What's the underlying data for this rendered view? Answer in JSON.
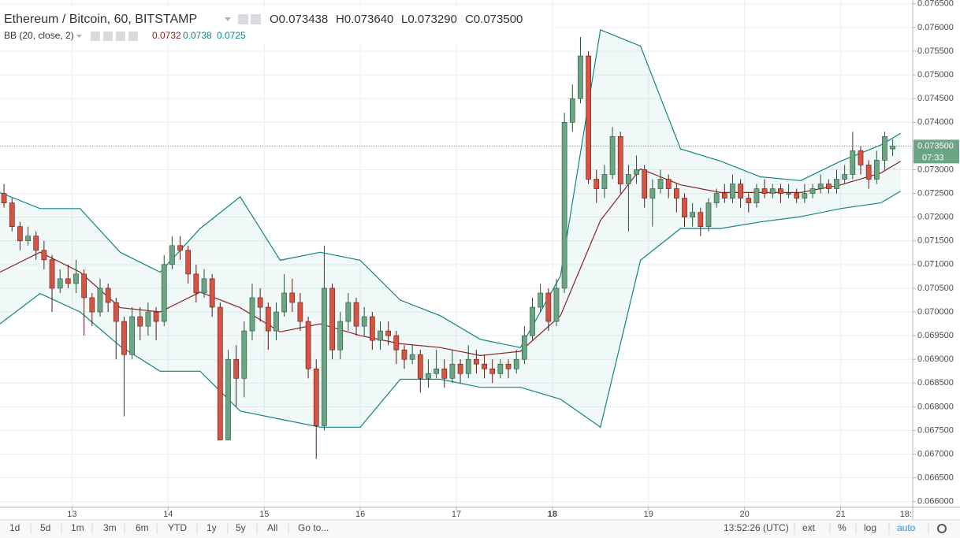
{
  "chart_data": {
    "type": "candlestick",
    "title": "Ethereum / Bitcoin, 60, BITSTAMP",
    "ohlc": [
      "O0.073438",
      "H0.073640",
      "L0.073290",
      "C0.073500"
    ],
    "indicator": {
      "name": "BB (20, close, 2)",
      "values": [
        "0.0732",
        "0.0738",
        "0.0725"
      ]
    },
    "up_color": "#6ba583",
    "down_color": "#d75442",
    "band_color": "#138484",
    "basis_color": "#872323",
    "grid": true,
    "xlim": [
      0,
      228
    ],
    "xticks": [
      {
        "value": 18,
        "label": "13"
      },
      {
        "value": 42,
        "label": "14"
      },
      {
        "value": 66,
        "label": "15"
      },
      {
        "value": 90,
        "label": "16"
      },
      {
        "value": 114,
        "label": "17"
      },
      {
        "value": 138,
        "label": "18"
      },
      {
        "value": 162,
        "label": "19"
      },
      {
        "value": 186,
        "label": "20"
      },
      {
        "value": 210,
        "label": "21"
      },
      {
        "value": 228,
        "label": "18:"
      }
    ],
    "ylim": [
      0.06588,
      0.07658
    ],
    "yticks": [
      {
        "value": 0.066,
        "label": "0.066000"
      },
      {
        "value": 0.0665,
        "label": "0.066500"
      },
      {
        "value": 0.067,
        "label": "0.067000"
      },
      {
        "value": 0.0675,
        "label": "0.067500"
      },
      {
        "value": 0.068,
        "label": "0.068000"
      },
      {
        "value": 0.0685,
        "label": "0.068500"
      },
      {
        "value": 0.069,
        "label": "0.069000"
      },
      {
        "value": 0.0695,
        "label": "0.069500"
      },
      {
        "value": 0.07,
        "label": "0.070000"
      },
      {
        "value": 0.0705,
        "label": "0.070500"
      },
      {
        "value": 0.071,
        "label": "0.071000"
      },
      {
        "value": 0.0715,
        "label": "0.071500"
      },
      {
        "value": 0.072,
        "label": "0.072000"
      },
      {
        "value": 0.0725,
        "label": "0.072500"
      },
      {
        "value": 0.073,
        "label": "0.073000"
      },
      {
        "value": 0.0735,
        "label": "0.073500"
      },
      {
        "value": 0.074,
        "label": "0.074000"
      },
      {
        "value": 0.0745,
        "label": "0.074500"
      },
      {
        "value": 0.075,
        "label": "0.075000"
      },
      {
        "value": 0.0755,
        "label": "0.075500"
      },
      {
        "value": 0.076,
        "label": "0.076000"
      },
      {
        "value": 0.0765,
        "label": "0.076500"
      }
    ],
    "last_price": {
      "value": 0.0735,
      "label": "0.073500"
    },
    "countdown": "07:33",
    "x": [
      1,
      3,
      5,
      7,
      9,
      11,
      13,
      15,
      17,
      19,
      21,
      23,
      25,
      27,
      29,
      31,
      33,
      35,
      37,
      39,
      41,
      43,
      45,
      47,
      49,
      51,
      53,
      55,
      57,
      59,
      61,
      63,
      65,
      67,
      69,
      71,
      73,
      75,
      77,
      79,
      81,
      83,
      85,
      87,
      89,
      91,
      93,
      95,
      97,
      99,
      101,
      103,
      105,
      107,
      109,
      111,
      113,
      115,
      117,
      119,
      121,
      123,
      125,
      127,
      129,
      131,
      133,
      135,
      137,
      139,
      141,
      143,
      145,
      147,
      149,
      151,
      153,
      155,
      157,
      159,
      161,
      163,
      165,
      167,
      169,
      171,
      173,
      175,
      177,
      179,
      181,
      183,
      185,
      187,
      189,
      191,
      193,
      195,
      197,
      199,
      201,
      203,
      205,
      207,
      209,
      211,
      213,
      215,
      217,
      219,
      221,
      223
    ],
    "candles": [
      [
        0.0725,
        0.0727,
        0.0722,
        0.0723
      ],
      [
        0.0723,
        0.0724,
        0.0717,
        0.0718
      ],
      [
        0.0718,
        0.0719,
        0.0713,
        0.0715
      ],
      [
        0.0715,
        0.0718,
        0.0714,
        0.0716
      ],
      [
        0.0716,
        0.0717,
        0.0711,
        0.0713
      ],
      [
        0.0713,
        0.0715,
        0.0709,
        0.0711
      ],
      [
        0.0711,
        0.0712,
        0.07,
        0.0705
      ],
      [
        0.0705,
        0.0709,
        0.0704,
        0.0707
      ],
      [
        0.0707,
        0.071,
        0.0705,
        0.0706
      ],
      [
        0.0706,
        0.0711,
        0.0704,
        0.0708
      ],
      [
        0.0708,
        0.0709,
        0.0695,
        0.0703
      ],
      [
        0.0703,
        0.0704,
        0.0697,
        0.07
      ],
      [
        0.07,
        0.0707,
        0.0699,
        0.0705
      ],
      [
        0.0705,
        0.0706,
        0.07,
        0.0702
      ],
      [
        0.0702,
        0.0703,
        0.069,
        0.0698
      ],
      [
        0.0698,
        0.0699,
        0.0678,
        0.0691
      ],
      [
        0.0691,
        0.0701,
        0.069,
        0.0699
      ],
      [
        0.0699,
        0.0701,
        0.0694,
        0.0697
      ],
      [
        0.0697,
        0.0702,
        0.0695,
        0.07
      ],
      [
        0.07,
        0.0701,
        0.0694,
        0.0698
      ],
      [
        0.0698,
        0.0712,
        0.0697,
        0.071
      ],
      [
        0.071,
        0.0716,
        0.0709,
        0.0714
      ],
      [
        0.0714,
        0.0716,
        0.0711,
        0.0713
      ],
      [
        0.0713,
        0.0714,
        0.0706,
        0.0708
      ],
      [
        0.0708,
        0.071,
        0.0702,
        0.0704
      ],
      [
        0.0704,
        0.0709,
        0.0703,
        0.0707
      ],
      [
        0.0707,
        0.0708,
        0.0699,
        0.0701
      ],
      [
        0.0701,
        0.0702,
        0.0673,
        0.0673
      ],
      [
        0.0673,
        0.0692,
        0.0673,
        0.069
      ],
      [
        0.069,
        0.0693,
        0.068,
        0.0686
      ],
      [
        0.0686,
        0.0698,
        0.0682,
        0.0696
      ],
      [
        0.0696,
        0.0706,
        0.0694,
        0.0703
      ],
      [
        0.0703,
        0.0705,
        0.0698,
        0.0701
      ],
      [
        0.0701,
        0.0702,
        0.0692,
        0.0696
      ],
      [
        0.0696,
        0.0702,
        0.0694,
        0.07
      ],
      [
        0.07,
        0.0708,
        0.0699,
        0.0704
      ],
      [
        0.0704,
        0.0707,
        0.07,
        0.0702
      ],
      [
        0.0702,
        0.0704,
        0.0696,
        0.0698
      ],
      [
        0.0698,
        0.0699,
        0.0686,
        0.0688
      ],
      [
        0.0688,
        0.069,
        0.0669,
        0.0676
      ],
      [
        0.0676,
        0.0714,
        0.0675,
        0.0705
      ],
      [
        0.0705,
        0.0706,
        0.069,
        0.0692
      ],
      [
        0.0692,
        0.07,
        0.069,
        0.0698
      ],
      [
        0.0698,
        0.0704,
        0.0696,
        0.0702
      ],
      [
        0.0702,
        0.0703,
        0.0695,
        0.0697
      ],
      [
        0.0697,
        0.0701,
        0.0695,
        0.0699
      ],
      [
        0.0699,
        0.07,
        0.0692,
        0.0694
      ],
      [
        0.0694,
        0.0698,
        0.0692,
        0.0696
      ],
      [
        0.0696,
        0.0698,
        0.0693,
        0.0695
      ],
      [
        0.0695,
        0.0696,
        0.0689,
        0.0692
      ],
      [
        0.0692,
        0.0693,
        0.0688,
        0.069
      ],
      [
        0.069,
        0.0693,
        0.0689,
        0.0691
      ],
      [
        0.0691,
        0.0692,
        0.0683,
        0.0686
      ],
      [
        0.0686,
        0.069,
        0.0684,
        0.0687
      ],
      [
        0.0687,
        0.0692,
        0.0686,
        0.0688
      ],
      [
        0.0688,
        0.069,
        0.0684,
        0.0686
      ],
      [
        0.0686,
        0.0692,
        0.0685,
        0.0689
      ],
      [
        0.0689,
        0.069,
        0.0685,
        0.0687
      ],
      [
        0.0687,
        0.0693,
        0.0686,
        0.069
      ],
      [
        0.069,
        0.0692,
        0.0687,
        0.0689
      ],
      [
        0.0689,
        0.0691,
        0.0686,
        0.0688
      ],
      [
        0.0688,
        0.069,
        0.0685,
        0.0687
      ],
      [
        0.0687,
        0.069,
        0.0686,
        0.0689
      ],
      [
        0.0689,
        0.069,
        0.0686,
        0.0688
      ],
      [
        0.0688,
        0.0692,
        0.0687,
        0.069
      ],
      [
        0.069,
        0.0697,
        0.0689,
        0.0695
      ],
      [
        0.0695,
        0.0703,
        0.0694,
        0.0701
      ],
      [
        0.0701,
        0.0706,
        0.07,
        0.0704
      ],
      [
        0.0704,
        0.0705,
        0.0696,
        0.0698
      ],
      [
        0.0698,
        0.0707,
        0.0697,
        0.0705
      ],
      [
        0.0705,
        0.0742,
        0.0704,
        0.074
      ],
      [
        0.074,
        0.0748,
        0.0738,
        0.0745
      ],
      [
        0.0745,
        0.0758,
        0.0744,
        0.0754
      ],
      [
        0.0754,
        0.0755,
        0.0727,
        0.0728
      ],
      [
        0.0728,
        0.073,
        0.0723,
        0.0726
      ],
      [
        0.0726,
        0.0731,
        0.0724,
        0.0729
      ],
      [
        0.0729,
        0.0739,
        0.0728,
        0.0737
      ],
      [
        0.0737,
        0.0738,
        0.0725,
        0.0727
      ],
      [
        0.0727,
        0.0731,
        0.0717,
        0.0729
      ],
      [
        0.0729,
        0.0733,
        0.0727,
        0.073
      ],
      [
        0.073,
        0.0731,
        0.0722,
        0.0724
      ],
      [
        0.0724,
        0.0728,
        0.0718,
        0.0726
      ],
      [
        0.0726,
        0.073,
        0.0725,
        0.0728
      ],
      [
        0.0728,
        0.0729,
        0.0724,
        0.0726
      ],
      [
        0.0726,
        0.0727,
        0.0721,
        0.0724
      ],
      [
        0.0724,
        0.0725,
        0.0718,
        0.072
      ],
      [
        0.072,
        0.0723,
        0.0718,
        0.0721
      ],
      [
        0.0721,
        0.0722,
        0.0716,
        0.0718
      ],
      [
        0.0718,
        0.0724,
        0.0717,
        0.0723
      ],
      [
        0.0723,
        0.0726,
        0.0722,
        0.0725
      ],
      [
        0.0725,
        0.0727,
        0.0723,
        0.0724
      ],
      [
        0.0724,
        0.0729,
        0.0723,
        0.0727
      ],
      [
        0.0727,
        0.0728,
        0.0722,
        0.0724
      ],
      [
        0.0724,
        0.0725,
        0.0721,
        0.0723
      ],
      [
        0.0723,
        0.0727,
        0.0722,
        0.0726
      ],
      [
        0.0726,
        0.0728,
        0.0724,
        0.0725
      ],
      [
        0.0725,
        0.0727,
        0.0724,
        0.0726
      ],
      [
        0.0726,
        0.0727,
        0.0723,
        0.0725
      ],
      [
        0.0725,
        0.0727,
        0.0724,
        0.0725
      ],
      [
        0.0725,
        0.0726,
        0.0723,
        0.0724
      ],
      [
        0.0724,
        0.0727,
        0.0723,
        0.0725
      ],
      [
        0.0725,
        0.0727,
        0.0724,
        0.0726
      ],
      [
        0.0726,
        0.0729,
        0.0725,
        0.0727
      ],
      [
        0.0727,
        0.0728,
        0.0725,
        0.0726
      ],
      [
        0.0726,
        0.073,
        0.0725,
        0.0728
      ],
      [
        0.0728,
        0.0731,
        0.0727,
        0.0729
      ],
      [
        0.0729,
        0.0738,
        0.0728,
        0.0734
      ],
      [
        0.0734,
        0.0735,
        0.0729,
        0.0731
      ],
      [
        0.0731,
        0.0732,
        0.0726,
        0.0728
      ],
      [
        0.0728,
        0.0734,
        0.0727,
        0.0732
      ],
      [
        0.0732,
        0.0738,
        0.073,
        0.0737
      ],
      [
        0.073438,
        0.07364,
        0.07329,
        0.0735
      ]
    ],
    "bands": {
      "x": [
        0,
        10,
        20,
        30,
        40,
        50,
        60,
        70,
        80,
        90,
        100,
        110,
        120,
        130,
        140,
        150,
        160,
        170,
        180,
        190,
        200,
        210,
        220,
        225
      ],
      "upper": [
        0.07252,
        0.07218,
        0.07218,
        0.07126,
        0.07084,
        0.07176,
        0.07243,
        0.07109,
        0.07126,
        0.07109,
        0.07025,
        0.06992,
        0.06942,
        0.06925,
        0.07076,
        0.07595,
        0.07561,
        0.07344,
        0.07318,
        0.07285,
        0.07277,
        0.07318,
        0.07352,
        0.07377
      ],
      "middle": [
        0.07084,
        0.07126,
        0.07084,
        0.07009,
        0.07,
        0.07042,
        0.07009,
        0.06958,
        0.06975,
        0.0695,
        0.06933,
        0.06925,
        0.06908,
        0.06917,
        0.06992,
        0.07193,
        0.07302,
        0.07268,
        0.07252,
        0.07252,
        0.07252,
        0.07268,
        0.07293,
        0.07318
      ],
      "lower": [
        0.06975,
        0.07039,
        0.07,
        0.06928,
        0.06875,
        0.06875,
        0.06791,
        0.06774,
        0.06757,
        0.06757,
        0.06858,
        0.06858,
        0.06841,
        0.06841,
        0.06816,
        0.06757,
        0.07109,
        0.07176,
        0.07176,
        0.0719,
        0.07201,
        0.07218,
        0.0723,
        0.07255
      ]
    },
    "toolbar": {
      "ranges": [
        "1d",
        "5d",
        "1m",
        "3m",
        "6m",
        "YTD",
        "1y",
        "5y",
        "All"
      ],
      "goto": "Go to...",
      "time": "13:52:26 (UTC)",
      "options": [
        "ext",
        "%",
        "log",
        "auto"
      ]
    }
  }
}
